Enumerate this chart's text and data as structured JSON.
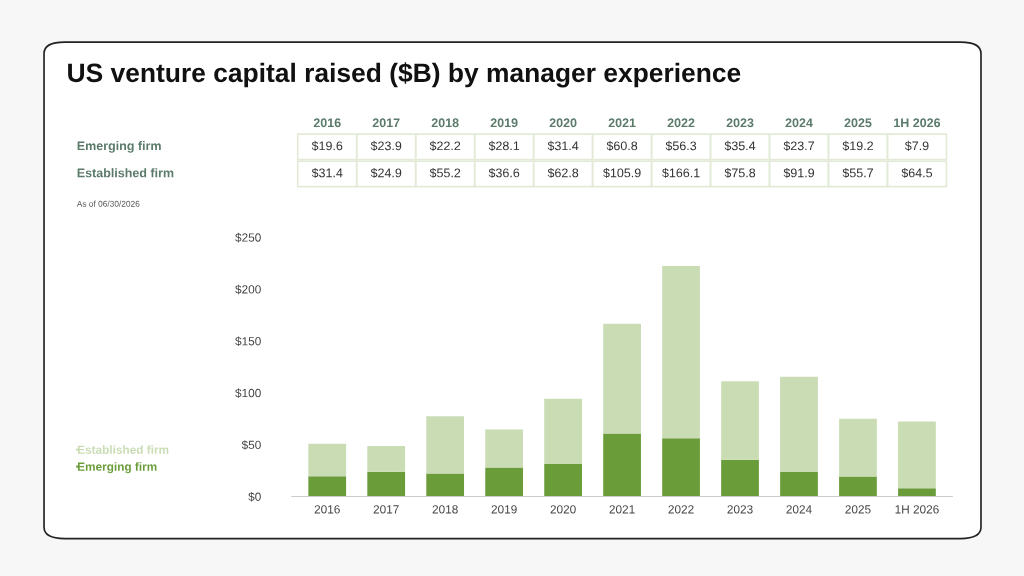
{
  "chart_data": {
    "type": "bar",
    "title": "US venture capital raised ($B) by manager experience",
    "categories": [
      "2016",
      "2017",
      "2018",
      "2019",
      "2020",
      "2021",
      "2022",
      "2023",
      "2024",
      "2025",
      "1H 2026"
    ],
    "stacked": true,
    "series": [
      {
        "name": "Emerging firm",
        "color": "#6a9d3a",
        "values": [
          19.6,
          23.9,
          22.2,
          28.1,
          31.4,
          60.8,
          56.3,
          35.4,
          23.7,
          19.2,
          7.9
        ],
        "value_labels": [
          "$19.6",
          "$23.9",
          "$22.2",
          "$28.1",
          "$31.4",
          "$60.8",
          "$56.3",
          "$35.4",
          "$23.7",
          "$19.2",
          "$7.9"
        ]
      },
      {
        "name": "Established firm",
        "color": "#c9dcb4",
        "values": [
          31.4,
          24.9,
          55.2,
          36.6,
          62.8,
          105.9,
          166.1,
          75.8,
          91.9,
          55.7,
          64.5
        ],
        "value_labels": [
          "$31.4",
          "$24.9",
          "$55.2",
          "$36.6",
          "$62.8",
          "$105.9",
          "$166.1",
          "$75.8",
          "$91.9",
          "$55.7",
          "$64.5"
        ]
      }
    ],
    "ylim": [
      0,
      250
    ],
    "yticks": [
      {
        "value": 0,
        "label": "$0"
      },
      {
        "value": 50,
        "label": "$50"
      },
      {
        "value": 100,
        "label": "$100"
      },
      {
        "value": 150,
        "label": "$150"
      },
      {
        "value": 200,
        "label": "$200"
      },
      {
        "value": 250,
        "label": "$250"
      }
    ],
    "grid": false,
    "legend": "bottom left",
    "annotations": [
      "As of 06/30/2026"
    ]
  }
}
